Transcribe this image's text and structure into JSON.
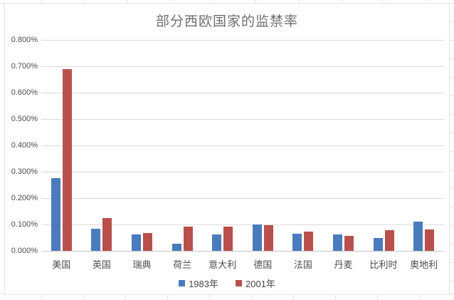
{
  "chart_data": {
    "type": "bar",
    "title": "部分西欧国家的监禁率",
    "categories": [
      "美国",
      "英国",
      "瑞典",
      "荷兰",
      "意大利",
      "德国",
      "法国",
      "丹麦",
      "比利时",
      "奥地利"
    ],
    "series": [
      {
        "name": "1983年",
        "color": "#4A7BBD",
        "values": [
          0.275,
          0.085,
          0.063,
          0.027,
          0.063,
          0.101,
          0.065,
          0.061,
          0.05,
          0.11
        ]
      },
      {
        "name": "2001年",
        "color": "#B9504C",
        "values": [
          0.688,
          0.125,
          0.067,
          0.093,
          0.092,
          0.097,
          0.074,
          0.058,
          0.079,
          0.082
        ]
      }
    ],
    "unit": "%",
    "xlabel": "",
    "ylabel": "",
    "ylim": [
      0,
      0.8
    ],
    "y_tick_step": 0.1,
    "y_tick_labels_top_to_bottom": [
      "0.800%",
      "0.700%",
      "0.600%",
      "0.500%",
      "0.400%",
      "0.300%",
      "0.200%",
      "0.100%",
      "0.000%"
    ],
    "grid": true,
    "legend_position": "bottom"
  },
  "colors": {
    "series_1983": "#4A7BBD",
    "series_2001": "#B9504C",
    "gridline": "#DADADA",
    "axis_line": "#C6C6C6",
    "axis_text": "#4A4A4A",
    "title_text": "#6E6E6E",
    "spreadsheet_gridline": "#E3E3E3"
  }
}
